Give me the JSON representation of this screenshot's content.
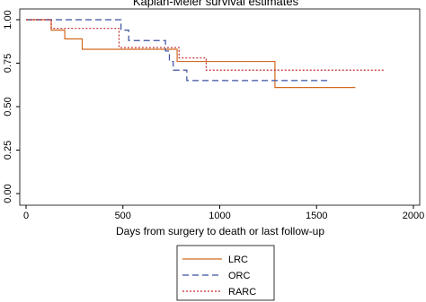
{
  "chart_data": {
    "type": "step",
    "title": "Kaplan-Meier survival estimates",
    "x_label": "Days from surgery to death or last follow-up",
    "xlim": [
      0,
      2000
    ],
    "xticks": [
      0,
      500,
      1000,
      1500,
      2000
    ],
    "ylim": [
      0,
      1
    ],
    "yticks": [
      {
        "value": 0,
        "label": "0.00"
      },
      {
        "value": 0.25,
        "label": "0.25"
      },
      {
        "value": 0.5,
        "label": "0.50"
      },
      {
        "value": 0.75,
        "label": "0.75"
      },
      {
        "value": 1,
        "label": "1.00"
      }
    ],
    "series": [
      {
        "name": "LRC",
        "color": "#d2691e",
        "dash": "solid",
        "x": [
          0,
          130,
          200,
          290,
          780,
          1285,
          1700
        ],
        "values": [
          1,
          0.94,
          0.89,
          0.83,
          0.76,
          0.61,
          0.61
        ]
      },
      {
        "name": "ORC",
        "color": "#3a4fa0",
        "dash": "dashed",
        "x": [
          0,
          490,
          530,
          720,
          740,
          760,
          830,
          1560
        ],
        "values": [
          1,
          0.94,
          0.88,
          0.82,
          0.76,
          0.71,
          0.65,
          0.65
        ]
      },
      {
        "name": "RARC",
        "color": "#c0282d",
        "dash": "dotted",
        "x": [
          0,
          130,
          480,
          790,
          930,
          1850
        ],
        "values": [
          1,
          0.95,
          0.84,
          0.78,
          0.71,
          0.71
        ]
      }
    ]
  }
}
